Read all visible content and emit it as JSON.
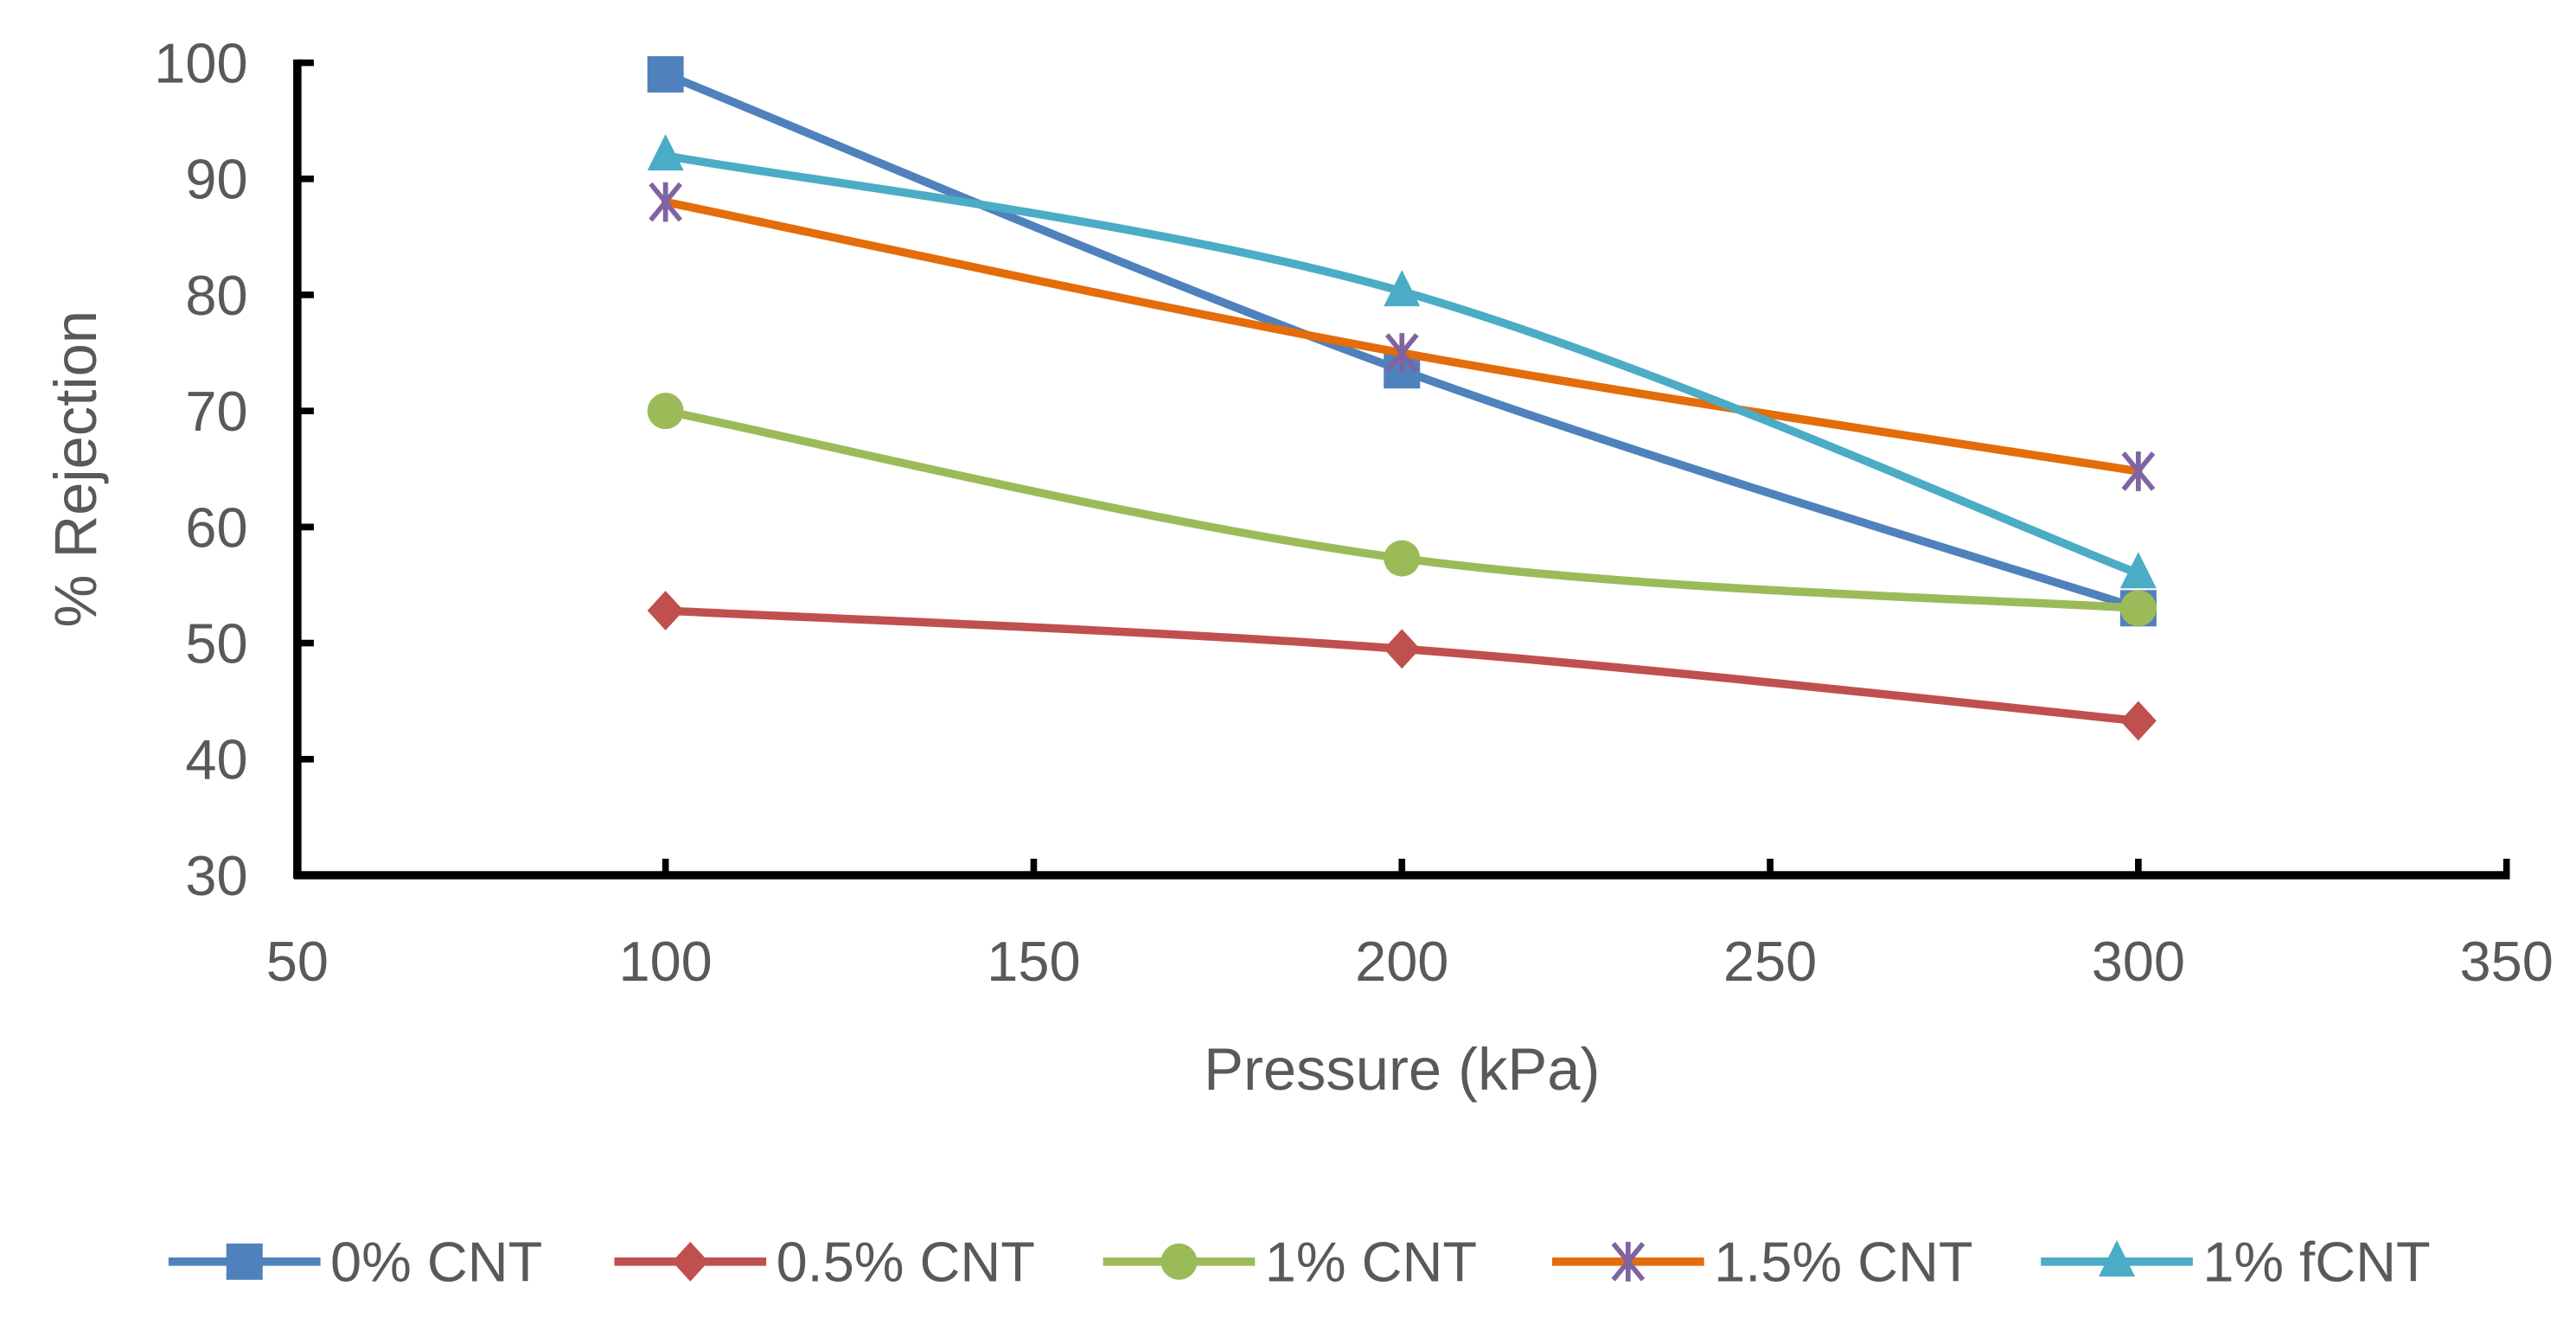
{
  "chart_data": {
    "type": "line",
    "title": "",
    "xlabel": "Pressure (kPa)",
    "ylabel": "% Rejection",
    "xlim": [
      50,
      350
    ],
    "ylim": [
      30,
      100
    ],
    "xticks": [
      50,
      100,
      150,
      200,
      250,
      300,
      350
    ],
    "yticks": [
      30,
      40,
      50,
      60,
      70,
      80,
      90,
      100
    ],
    "grid": false,
    "legend_position": "bottom",
    "x": [
      100,
      200,
      300
    ],
    "series": [
      {
        "name": "0% CNT",
        "values": [
          99,
          73.5,
          53
        ],
        "color": "#4F81BD",
        "marker": "square"
      },
      {
        "name": "0.5% CNT",
        "values": [
          52.8,
          49.5,
          43.3
        ],
        "color": "#C0504D",
        "marker": "diamond"
      },
      {
        "name": "1% CNT",
        "values": [
          70,
          57.3,
          53
        ],
        "color": "#9BBB59",
        "marker": "circle"
      },
      {
        "name": "1.5% CNT",
        "values": [
          88,
          75,
          64.8
        ],
        "color": "#E46C0A",
        "marker": "star",
        "marker_color": "#8064A2"
      },
      {
        "name": "1% fCNT",
        "values": [
          92,
          80.3,
          56
        ],
        "color": "#4BACC6",
        "marker": "triangle"
      }
    ]
  }
}
